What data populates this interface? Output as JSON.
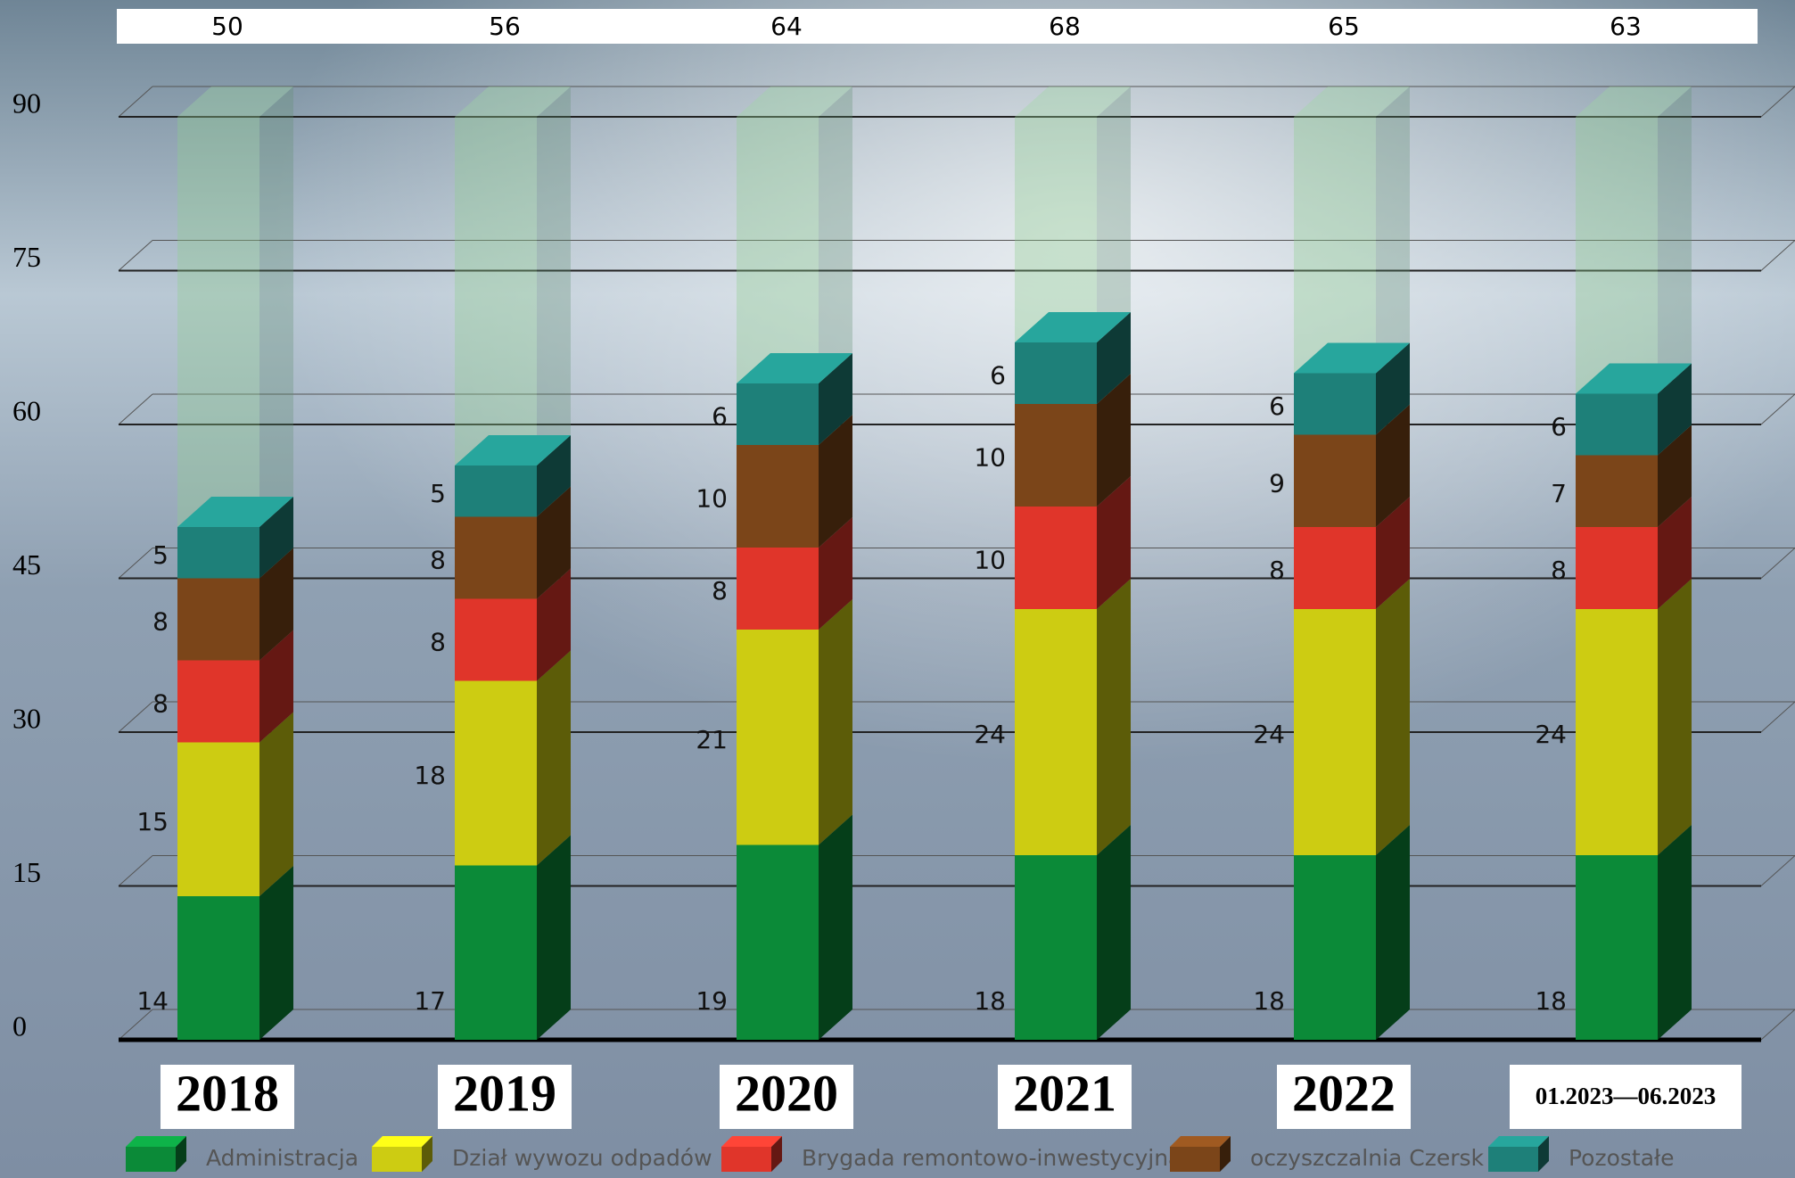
{
  "chart_data": {
    "type": "stacked-bar-3d",
    "categories": [
      "2018",
      "2019",
      "2020",
      "2021",
      "2022",
      "01.2023—06.2023"
    ],
    "totals": [
      50,
      56,
      64,
      68,
      65,
      63
    ],
    "series": [
      {
        "name": "Administracja",
        "color": "#0b8a38",
        "values": [
          14,
          17,
          19,
          18,
          18,
          18
        ]
      },
      {
        "name": "Dział wywozu odpadów",
        "color": "#cdcc12",
        "values": [
          15,
          18,
          21,
          24,
          24,
          24
        ]
      },
      {
        "name": "Brygada remontowo-inwestycyjna",
        "color": "#e0352a",
        "values": [
          8,
          8,
          8,
          10,
          8,
          8
        ]
      },
      {
        "name": "oczyszczalnia Czersk",
        "color": "#7b4519",
        "values": [
          8,
          8,
          10,
          10,
          9,
          7
        ]
      },
      {
        "name": "Pozostałe",
        "color": "#1e8079",
        "values": [
          5,
          5,
          6,
          6,
          6,
          6
        ]
      }
    ],
    "ylim": [
      0,
      90
    ],
    "yticks": [
      0,
      15,
      30,
      45,
      60,
      75,
      90
    ],
    "grid": true
  }
}
